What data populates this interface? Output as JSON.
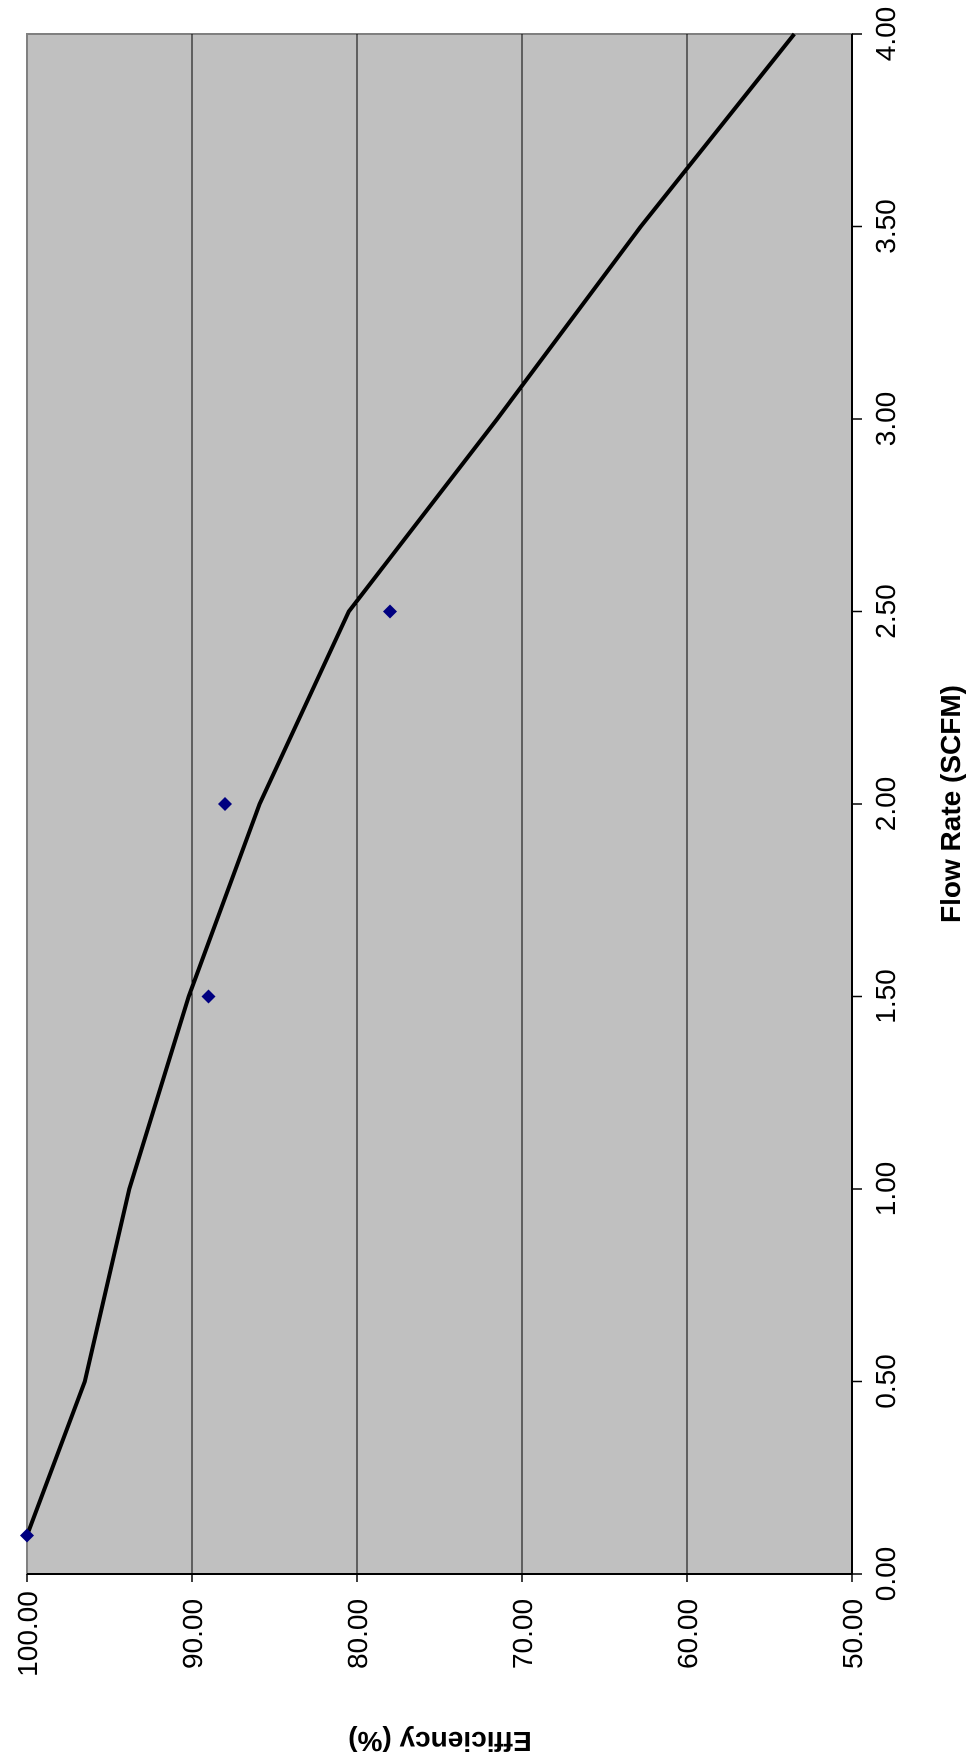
{
  "chart_data": {
    "type": "scatter",
    "orientation": "rotated-90-clockwise",
    "title": "",
    "xlabel": "Flow Rate (SCFM)",
    "ylabel": "Efficiency (%)",
    "xlim": [
      0,
      4
    ],
    "ylim": [
      50,
      100
    ],
    "x_ticks": [
      "0.00",
      "0.50",
      "1.00",
      "1.50",
      "2.00",
      "2.50",
      "3.00",
      "3.50",
      "4.00"
    ],
    "y_ticks": [
      "100.00",
      "90.00",
      "80.00",
      "70.00",
      "60.00",
      "50.00"
    ],
    "grid": true,
    "series": [
      {
        "type": "scatter",
        "marker": "diamond",
        "color": "#000080",
        "points": [
          {
            "x": 0.1,
            "y": 100.0
          },
          {
            "x": 1.5,
            "y": 89.0
          },
          {
            "x": 2.0,
            "y": 88.0
          },
          {
            "x": 2.5,
            "y": 78.0
          }
        ]
      },
      {
        "type": "line",
        "style": "trendline",
        "color": "#000000",
        "points": [
          {
            "x": 0.1,
            "y": 100.0
          },
          {
            "x": 0.5,
            "y": 96.5
          },
          {
            "x": 1.0,
            "y": 93.8
          },
          {
            "x": 1.5,
            "y": 90.2
          },
          {
            "x": 2.0,
            "y": 85.9
          },
          {
            "x": 2.5,
            "y": 80.5
          },
          {
            "x": 3.0,
            "y": 71.5
          },
          {
            "x": 3.5,
            "y": 62.8
          },
          {
            "x": 4.0,
            "y": 53.5
          }
        ]
      }
    ],
    "colors": {
      "plot_background": "#c0c0c0",
      "grid": "#000000",
      "marker": "#000080",
      "trendline": "#000000"
    }
  }
}
